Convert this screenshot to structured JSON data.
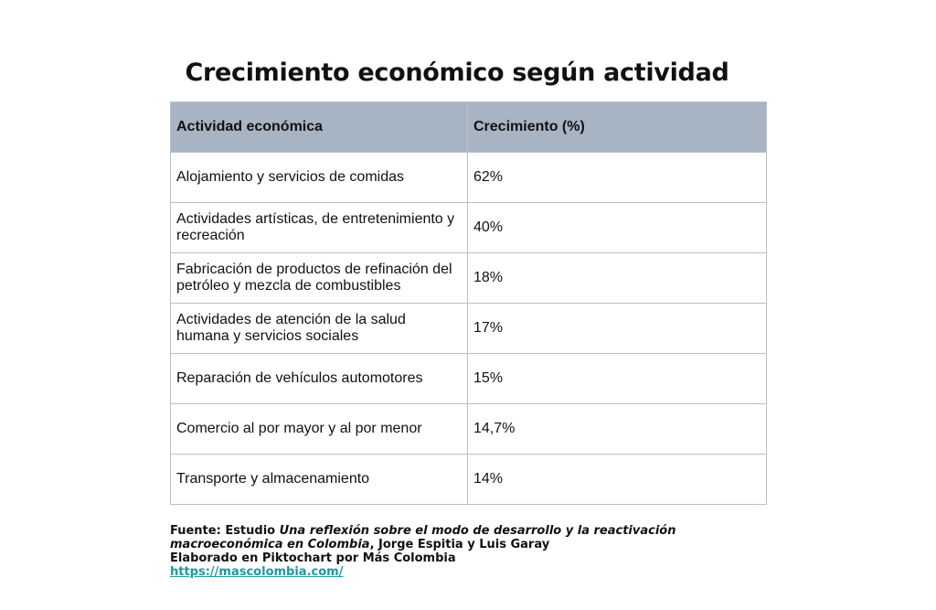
{
  "chart_data": {
    "type": "table",
    "title": "Crecimiento económico según actividad",
    "columns": [
      "Actividad económica",
      "Crecimiento (%)"
    ],
    "rows": [
      {
        "activity": "Alojamiento y servicios de comidas",
        "growth": "62%"
      },
      {
        "activity": "Actividades artísticas, de entretenimiento y recreación",
        "growth": "40%"
      },
      {
        "activity": "Fabricación de productos de refinación del petróleo y mezcla de combustibles",
        "growth": "18%"
      },
      {
        "activity": "Actividades de atención de la salud humana y servicios sociales",
        "growth": "17%"
      },
      {
        "activity": "Reparación de vehículos automotores",
        "growth": "15%"
      },
      {
        "activity": "Comercio al por mayor y al por menor",
        "growth": "14,7%"
      },
      {
        "activity": "Transporte y almacenamiento",
        "growth": "14%"
      }
    ],
    "values": [
      62,
      40,
      18,
      17,
      15,
      14.7,
      14
    ],
    "header_color": "#a7b4c3",
    "border_color": "#b8c0c8"
  },
  "footer": {
    "source_prefix": "Fuente: Estudio ",
    "source_title": "Una reflexión sobre el modo de desarrollo y la reactivación macroeconómica en Colombia",
    "source_authors": ", Jorge Espitia y Luis Garay",
    "credit": "Elaborado en Piktochart por Más Colombia",
    "link_text": "https://mascolombia.com/",
    "link_color": "#1a9aa0"
  }
}
